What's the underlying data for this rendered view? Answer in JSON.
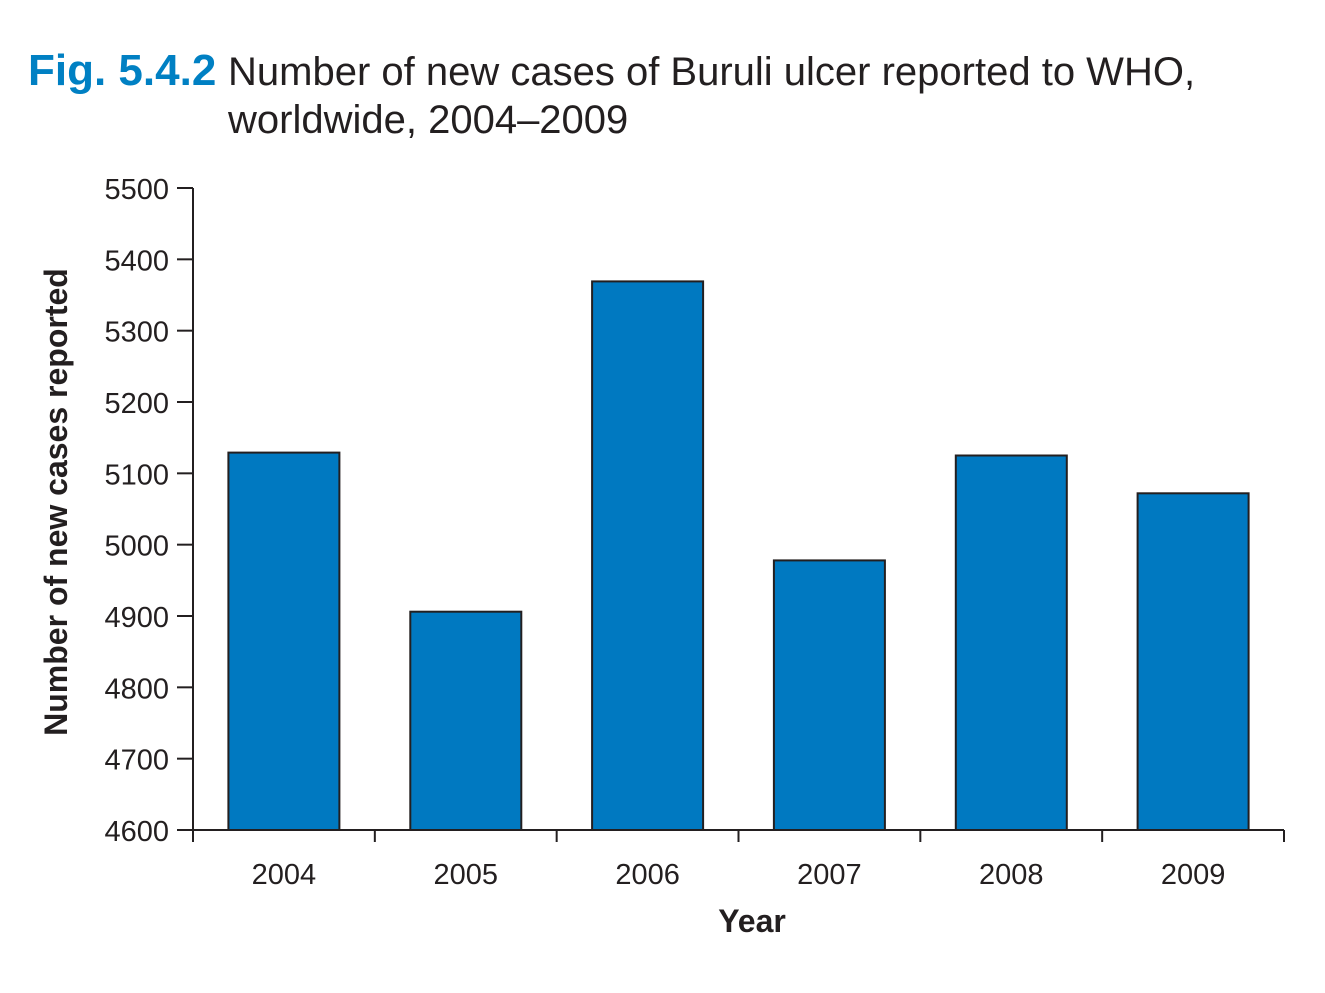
{
  "figure": {
    "number": "Fig. 5.4.2",
    "title_line1": "Number of new cases of Buruli ulcer reported to WHO,",
    "title_line2": "worldwide, 2004–2009"
  },
  "colors": {
    "figure_number": "#0080c3",
    "bar_fill": "#0079c1",
    "bar_stroke": "#231f20",
    "axis": "#231f20"
  },
  "chart_data": {
    "type": "bar",
    "categories": [
      "2004",
      "2005",
      "2006",
      "2007",
      "2008",
      "2009"
    ],
    "values": [
      5129,
      4906,
      5369,
      4978,
      5125,
      5072
    ],
    "xlabel": "Year",
    "ylabel": "Number of new cases reported",
    "ylim": [
      4600,
      5500
    ],
    "yticks": [
      4600,
      4700,
      4800,
      4900,
      5000,
      5100,
      5200,
      5300,
      5400,
      5500
    ],
    "grid": false,
    "legend": "none"
  }
}
